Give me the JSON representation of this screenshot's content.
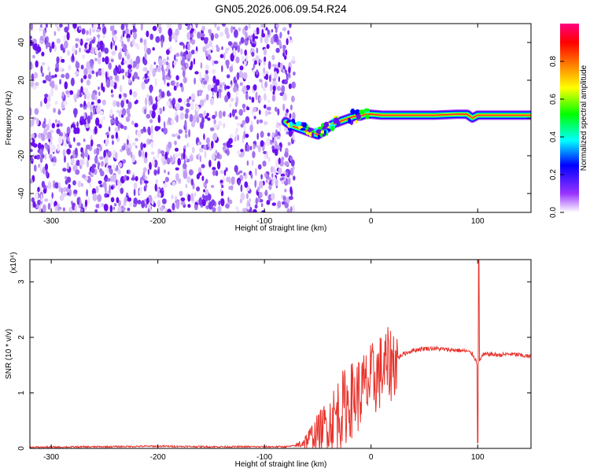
{
  "title": "GN05.2026.006.09.54.R24",
  "colors": {
    "axis": "#000000",
    "snr_line": "#e8312a",
    "noise_purple_dark": "#6a0ff0",
    "noise_purple_light": "#c9a8f5"
  },
  "chart_data": [
    {
      "type": "heatmap",
      "title": "GN05.2026.006.09.54.R24",
      "xlabel": "Height of straight line (km)",
      "ylabel": "Frequency (Hz)",
      "xlim": [
        -320,
        150
      ],
      "ylim": [
        -50,
        50
      ],
      "x_ticks": [
        -300,
        -200,
        -100,
        0,
        100
      ],
      "y_ticks": [
        -40,
        -20,
        0,
        20,
        40
      ],
      "colorbar": {
        "label": "Normalized spectral amplitude",
        "range": [
          0,
          1
        ],
        "ticks": [
          "0.0",
          "0.2",
          "0.4",
          "0.6",
          "0.8"
        ],
        "colormap": [
          "#ffffff",
          "#9933ff",
          "#0000ff",
          "#00ffff",
          "#00ff00",
          "#ffff00",
          "#ff8000",
          "#ff0000",
          "#ff0080"
        ]
      },
      "noise_region_x": [
        -320,
        -75
      ],
      "signal_track": {
        "x": [
          -80,
          -75,
          -70,
          -65,
          -60,
          -55,
          -50,
          -45,
          -40,
          -35,
          -30,
          -25,
          -20,
          -15,
          -10,
          -5,
          0,
          10,
          20,
          40,
          60,
          80,
          90,
          95,
          100,
          120,
          150
        ],
        "freq_hz": [
          -2,
          -4,
          -5,
          -6,
          -7,
          -8,
          -9,
          -7,
          -5,
          -3,
          -2,
          -1,
          0,
          1,
          1,
          2,
          2,
          1.5,
          1.5,
          1.5,
          1.5,
          2,
          2,
          0,
          1.5,
          1.5,
          1.5
        ]
      }
    },
    {
      "type": "line",
      "xlabel": "Height of straight line (km)",
      "ylabel": "SNR (10 * v/v)",
      "y_multiplier": "(x10⁴)",
      "xlim": [
        -320,
        150
      ],
      "ylim": [
        0,
        3.4
      ],
      "x_ticks": [
        -300,
        -200,
        -100,
        0,
        100
      ],
      "y_ticks": [
        0,
        1,
        2,
        3
      ],
      "series": [
        {
          "x": [
            -320,
            -250,
            -200,
            -150,
            -100,
            -80,
            -70,
            -60,
            -50,
            -40,
            -30,
            -20,
            -10,
            0,
            10,
            20,
            30,
            40,
            50,
            60,
            70,
            80,
            90,
            95,
            98,
            100,
            102,
            105,
            110,
            120,
            130,
            140,
            150
          ],
          "y": [
            0.02,
            0.03,
            0.04,
            0.03,
            0.03,
            0.03,
            0.05,
            0.15,
            0.3,
            0.45,
            0.65,
            0.85,
            1.0,
            1.2,
            1.4,
            1.55,
            1.7,
            1.77,
            1.8,
            1.8,
            1.78,
            1.77,
            1.75,
            1.7,
            1.6,
            1.5,
            1.6,
            1.68,
            1.7,
            1.68,
            1.7,
            1.68,
            1.65
          ],
          "spikes": [
            {
              "x": 100,
              "y_min": 0.1,
              "y_max": 3.35
            },
            {
              "x": 101,
              "y_min": 0.2,
              "y_max": 3.4
            }
          ]
        }
      ]
    }
  ]
}
